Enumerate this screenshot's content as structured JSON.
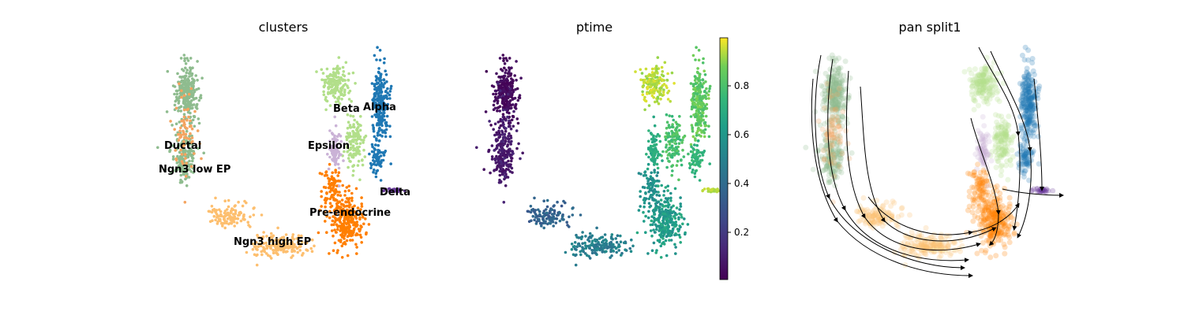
{
  "chart_data": [
    {
      "type": "scatter",
      "title": "clusters",
      "legend": "on data",
      "colors": {
        "Ductal": "#8fbc8f",
        "Ngn3 low EP": "#f4a460",
        "Ngn3 high EP": "#fdbf6f",
        "Pre-endocrine": "#ff7f00",
        "Beta": "#b2df8a",
        "Alpha": "#1f78b4",
        "Delta": "#6a3d9a",
        "Epsilon": "#cab2d6"
      },
      "labels": [
        "Ductal",
        "Ngn3 low EP",
        "Ngn3 high EP",
        "Pre-endocrine",
        "Beta",
        "Alpha",
        "Delta",
        "Epsilon"
      ]
    },
    {
      "type": "scatter",
      "title": "ptime",
      "colormap": "viridis",
      "colorbar_range": [
        0,
        1
      ],
      "colorbar_ticks": [
        "0.2",
        "0.4",
        "0.6",
        "0.8"
      ]
    },
    {
      "type": "scatter",
      "title": "pan split1",
      "overlay": "streamlines"
    }
  ]
}
